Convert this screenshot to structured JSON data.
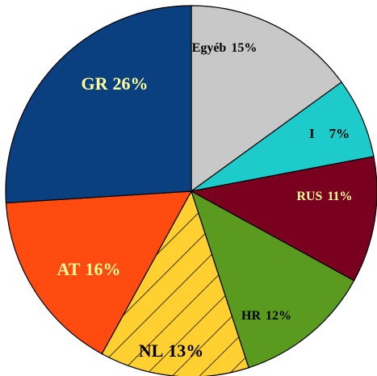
{
  "chart_data": {
    "type": "pie",
    "categories": [
      "Egyéb",
      "I",
      "RUS",
      "HR",
      "NL",
      "AT",
      "GR"
    ],
    "values": [
      15,
      7,
      11,
      12,
      13,
      16,
      26
    ],
    "value_labels": [
      "15%",
      "7%",
      "11%",
      "12%",
      "13%",
      "16%",
      "26%"
    ],
    "colors": [
      "#c8c8c8",
      "#1ecbcb",
      "#7a0020",
      "#5a9a1e",
      "#ffd030",
      "#ff4a10",
      "#0a4080"
    ],
    "hatch": [
      false,
      false,
      false,
      false,
      true,
      false,
      false
    ]
  }
}
